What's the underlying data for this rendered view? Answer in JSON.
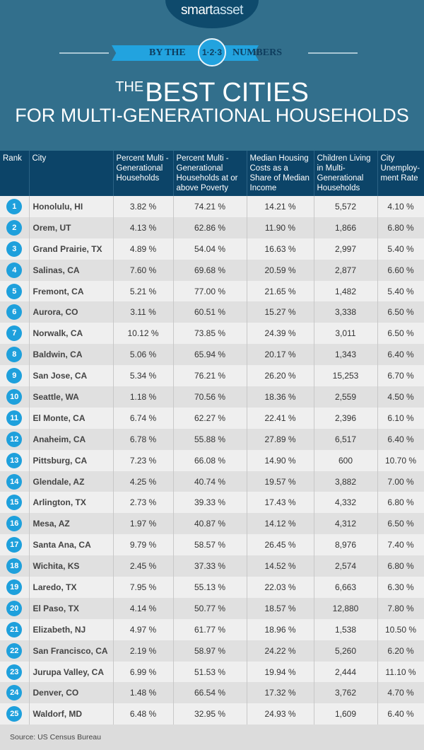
{
  "brand": {
    "logo_main": "smart",
    "logo_accent": "asset"
  },
  "banner": {
    "left": "BY THE",
    "center": "1·2·3",
    "right": "NUMBERS"
  },
  "title": {
    "the": "THE",
    "main": "BEST CITIES",
    "sub": "FOR MULTI-GENERATIONAL HOUSEHOLDS"
  },
  "colors": {
    "header_bg": "#326f8c",
    "table_header": "#0c4468",
    "accent": "#1ea0dc"
  },
  "table": {
    "headers": [
      "Rank",
      "City",
      "Percent Multi -Generational Households",
      "Percent Multi -Generational Households at or above Poverty",
      "Median Housing Costs as a Share of Median Income",
      "Children Living in Multi-Generational Households",
      "City Unemploy-ment Rate"
    ],
    "rows": [
      [
        "1",
        "Honolulu, HI",
        "3.82 %",
        "74.21 %",
        "14.21 %",
        "5,572",
        "4.10 %"
      ],
      [
        "2",
        "Orem, UT",
        "4.13 %",
        "62.86 %",
        "11.90 %",
        "1,866",
        "6.80 %"
      ],
      [
        "3",
        "Grand Prairie, TX",
        "4.89 %",
        "54.04 %",
        "16.63 %",
        "2,997",
        "5.40 %"
      ],
      [
        "4",
        "Salinas, CA",
        "7.60 %",
        "69.68 %",
        "20.59 %",
        "2,877",
        "6.60 %"
      ],
      [
        "5",
        "Fremont, CA",
        "5.21 %",
        "77.00 %",
        "21.65 %",
        "1,482",
        "5.40 %"
      ],
      [
        "6",
        "Aurora, CO",
        "3.11 %",
        "60.51 %",
        "15.27 %",
        "3,338",
        "6.50 %"
      ],
      [
        "7",
        "Norwalk, CA",
        "10.12 %",
        "73.85 %",
        "24.39 %",
        "3,011",
        "6.50 %"
      ],
      [
        "8",
        "Baldwin, CA",
        "5.06 %",
        "65.94 %",
        "20.17 %",
        "1,343",
        "6.40 %"
      ],
      [
        "9",
        "San Jose, CA",
        "5.34 %",
        "76.21 %",
        "26.20 %",
        "15,253",
        "6.70 %"
      ],
      [
        "10",
        "Seattle, WA",
        "1.18 %",
        "70.56 %",
        "18.36 %",
        "2,559",
        "4.50 %"
      ],
      [
        "11",
        "El Monte, CA",
        "6.74 %",
        "62.27 %",
        "22.41 %",
        "2,396",
        "6.10 %"
      ],
      [
        "12",
        "Anaheim, CA",
        "6.78 %",
        "55.88 %",
        "27.89 %",
        "6,517",
        "6.40 %"
      ],
      [
        "13",
        "Pittsburg, CA",
        "7.23 %",
        "66.08 %",
        "14.90 %",
        "600",
        "10.70 %"
      ],
      [
        "14",
        "Glendale, AZ",
        "4.25 %",
        "40.74 %",
        "19.57 %",
        "3,882",
        "7.00 %"
      ],
      [
        "15",
        "Arlington, TX",
        "2.73 %",
        "39.33 %",
        "17.43 %",
        "4,332",
        "6.80 %"
      ],
      [
        "16",
        "Mesa, AZ",
        "1.97 %",
        "40.87 %",
        "14.12 %",
        "4,312",
        "6.50 %"
      ],
      [
        "17",
        "Santa Ana, CA",
        "9.79 %",
        "58.57 %",
        "26.45 %",
        "8,976",
        "7.40 %"
      ],
      [
        "18",
        "Wichita, KS",
        "2.45 %",
        "37.33 %",
        "14.52 %",
        "2,574",
        "6.80 %"
      ],
      [
        "19",
        "Laredo, TX",
        "7.95 %",
        "55.13 %",
        "22.03 %",
        "6,663",
        "6.30 %"
      ],
      [
        "20",
        "El Paso, TX",
        "4.14 %",
        "50.77 %",
        "18.57 %",
        "12,880",
        "7.80 %"
      ],
      [
        "21",
        "Elizabeth, NJ",
        "4.97 %",
        "61.77 %",
        "18.96 %",
        "1,538",
        "10.50 %"
      ],
      [
        "22",
        "San Francisco, CA",
        "2.19 %",
        "58.97 %",
        "24.22 %",
        "5,260",
        "6.20 %"
      ],
      [
        "23",
        "Jurupa Valley, CA",
        "6.99 %",
        "51.53 %",
        "19.94 %",
        "2,444",
        "11.10 %"
      ],
      [
        "24",
        "Denver, CO",
        "1.48 %",
        "66.54 %",
        "17.32 %",
        "3,762",
        "4.70 %"
      ],
      [
        "25",
        "Waldorf, MD",
        "6.48 %",
        "32.95 %",
        "24.93 %",
        "1,609",
        "6.40 %"
      ]
    ]
  },
  "footer": {
    "source": "Source: US Census Bureau"
  }
}
